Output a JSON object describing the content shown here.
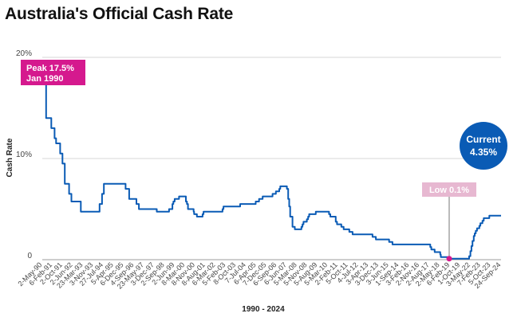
{
  "chart_data": {
    "type": "line",
    "title": "Australia's Official Cash Rate",
    "xlabel": "1990 - 2024",
    "ylabel": "Cash Rate",
    "ylim": [
      0,
      20
    ],
    "yticks": [
      0,
      10,
      20
    ],
    "ytick_labels": [
      "0",
      "10%",
      "20%"
    ],
    "xlim": [
      "1990-05-02",
      "2024-09-24"
    ],
    "grid": true,
    "tick_labels": [
      "2-May-90",
      "6-Feb-91",
      "2-Oct-91",
      "2-Jun-92",
      "23-Mar-93",
      "3-Nov-93",
      "27-Jul-94",
      "5-Apr-95",
      "6-Dec-95",
      "4-Sep-96",
      "23-May-97",
      "3-Dec-97",
      "2-Sep-98",
      "2-Jun-99",
      "8-Mar-00",
      "8-Nov-00",
      "8-Aug-01",
      "6-Mar-02",
      "5-Feb-03",
      "8-Oct-03",
      "7-Jul-04",
      "6-Apr-05",
      "7-Dec-05",
      "6-Sep-06",
      "6-Jun-07",
      "5-Mar-08",
      "5-Nov-08",
      "5-Aug-09",
      "5-Mar-10",
      "2-Feb-11",
      "5-Oct-11",
      "4-Jul-12",
      "3-Apr-13",
      "3-Dec-13",
      "3-Jun-15",
      "1-Sep-14",
      "3-Feb-16",
      "2-Nov-16",
      "2-Aug-17",
      "2-May-18",
      "6-Feb-19",
      "1-Oct-19",
      "3-May-22",
      "7-Feb-23",
      "5-Oct-23",
      "24-Sep-24"
    ],
    "series": [
      {
        "color": "#0a5bb5",
        "points": [
          [
            "1990-05-02",
            17.5
          ],
          [
            "1990-08-15",
            14.0
          ],
          [
            "1991-01-04",
            13.0
          ],
          [
            "1991-04-04",
            12.0
          ],
          [
            "1991-05-16",
            11.5
          ],
          [
            "1991-09-04",
            10.5
          ],
          [
            "1991-11-06",
            9.5
          ],
          [
            "1992-01-08",
            7.5
          ],
          [
            "1992-05-06",
            6.5
          ],
          [
            "1992-07-08",
            5.75
          ],
          [
            "1993-03-23",
            4.75
          ],
          [
            "1994-08-17",
            5.5
          ],
          [
            "1994-10-24",
            6.5
          ],
          [
            "1994-12-14",
            7.5
          ],
          [
            "1996-07-31",
            7.0
          ],
          [
            "1996-11-06",
            6.0
          ],
          [
            "1997-05-23",
            5.5
          ],
          [
            "1997-07-30",
            5.0
          ],
          [
            "1998-12-02",
            4.75
          ],
          [
            "1999-11-03",
            5.0
          ],
          [
            "2000-02-02",
            5.5
          ],
          [
            "2000-03-01",
            5.75
          ],
          [
            "2000-04-05",
            6.0
          ],
          [
            "2000-08-02",
            6.25
          ],
          [
            "2001-02-07",
            5.75
          ],
          [
            "2001-03-07",
            5.5
          ],
          [
            "2001-04-04",
            5.0
          ],
          [
            "2001-09-05",
            4.75
          ],
          [
            "2001-09-19",
            4.5
          ],
          [
            "2001-10-03",
            4.5
          ],
          [
            "2001-12-05",
            4.25
          ],
          [
            "2002-05-08",
            4.5
          ],
          [
            "2002-06-05",
            4.75
          ],
          [
            "2003-11-05",
            5.0
          ],
          [
            "2003-12-03",
            5.25
          ],
          [
            "2005-03-02",
            5.5
          ],
          [
            "2006-05-03",
            5.75
          ],
          [
            "2006-08-02",
            6.0
          ],
          [
            "2006-11-08",
            6.25
          ],
          [
            "2007-08-08",
            6.5
          ],
          [
            "2007-11-07",
            6.75
          ],
          [
            "2008-02-06",
            7.0
          ],
          [
            "2008-03-05",
            7.25
          ],
          [
            "2008-09-03",
            7.0
          ],
          [
            "2008-10-08",
            6.0
          ],
          [
            "2008-11-05",
            5.25
          ],
          [
            "2008-12-03",
            4.25
          ],
          [
            "2009-02-04",
            3.25
          ],
          [
            "2009-04-08",
            3.0
          ],
          [
            "2009-10-07",
            3.25
          ],
          [
            "2009-11-04",
            3.5
          ],
          [
            "2009-12-02",
            3.75
          ],
          [
            "2010-03-03",
            4.0
          ],
          [
            "2010-04-07",
            4.25
          ],
          [
            "2010-05-05",
            4.5
          ],
          [
            "2010-11-03",
            4.75
          ],
          [
            "2011-11-02",
            4.5
          ],
          [
            "2011-12-07",
            4.25
          ],
          [
            "2012-05-02",
            3.75
          ],
          [
            "2012-06-06",
            3.5
          ],
          [
            "2012-10-03",
            3.25
          ],
          [
            "2012-12-05",
            3.0
          ],
          [
            "2013-05-08",
            2.75
          ],
          [
            "2013-08-07",
            2.5
          ],
          [
            "2015-02-04",
            2.25
          ],
          [
            "2015-05-06",
            2.0
          ],
          [
            "2016-05-04",
            1.75
          ],
          [
            "2016-08-03",
            1.5
          ],
          [
            "2019-06-05",
            1.25
          ],
          [
            "2019-07-03",
            1.0
          ],
          [
            "2019-10-02",
            0.75
          ],
          [
            "2020-03-04",
            0.5
          ],
          [
            "2020-03-19",
            0.25
          ],
          [
            "2020-11-04",
            0.1
          ],
          [
            "2022-05-04",
            0.35
          ],
          [
            "2022-06-08",
            0.85
          ],
          [
            "2022-07-06",
            1.35
          ],
          [
            "2022-08-03",
            1.85
          ],
          [
            "2022-09-07",
            2.35
          ],
          [
            "2022-10-05",
            2.6
          ],
          [
            "2022-11-02",
            2.85
          ],
          [
            "2022-12-07",
            3.1
          ],
          [
            "2023-02-08",
            3.35
          ],
          [
            "2023-03-08",
            3.6
          ],
          [
            "2023-05-03",
            3.85
          ],
          [
            "2023-06-07",
            4.1
          ],
          [
            "2023-11-08",
            4.35
          ],
          [
            "2024-09-24",
            4.35
          ]
        ]
      }
    ],
    "annotations": {
      "peak": {
        "line1": "Peak 17.5%",
        "line2": "Jan 1990",
        "color": "#d5198e",
        "x": "1990-05-02",
        "y": 17.5
      },
      "low": {
        "text": "Low 0.1%",
        "color": "#e7b8d1",
        "x": "2020-11-04",
        "y": 0.1
      },
      "current": {
        "line1": "Current",
        "line2": "4.35%",
        "color": "#0a5bb5"
      }
    }
  }
}
